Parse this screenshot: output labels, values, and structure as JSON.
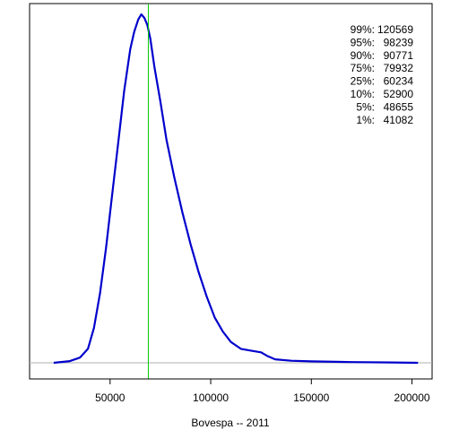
{
  "chart_data": {
    "type": "line",
    "title": "",
    "xlabel": "Bovespa -- 2011",
    "ylabel": "",
    "xlim": [
      10000,
      210000
    ],
    "ylim": [
      0,
      1
    ],
    "x_ticks": [
      50000,
      100000,
      150000,
      200000
    ],
    "x_tick_labels": [
      "50000",
      "100000",
      "150000",
      "200000"
    ],
    "grid": false,
    "y_axis_shown": false,
    "baseline_value": 0,
    "reference_line": {
      "x": 69000,
      "color": "#00cc00"
    },
    "series": [
      {
        "color": "#0000cc",
        "x": [
          22000,
          30000,
          35000,
          39000,
          42000,
          45000,
          48000,
          51000,
          54000,
          57000,
          60000,
          62000,
          64000,
          65500,
          67000,
          68500,
          70000,
          72000,
          75000,
          78000,
          82000,
          86000,
          90000,
          94000,
          98000,
          102000,
          106000,
          110000,
          115000,
          120000,
          125000,
          128000,
          132000,
          140000,
          150000,
          170000,
          190000,
          203000
        ],
        "y": [
          0.0,
          0.005,
          0.015,
          0.04,
          0.1,
          0.2,
          0.33,
          0.48,
          0.63,
          0.78,
          0.9,
          0.95,
          0.985,
          1.0,
          0.99,
          0.97,
          0.93,
          0.85,
          0.75,
          0.64,
          0.53,
          0.43,
          0.34,
          0.26,
          0.19,
          0.13,
          0.09,
          0.06,
          0.04,
          0.035,
          0.03,
          0.02,
          0.01,
          0.006,
          0.004,
          0.002,
          0.001,
          0.0
        ]
      }
    ],
    "quantiles": [
      {
        "label": "99%:",
        "value": "120569"
      },
      {
        "label": "95%:",
        "value": "98239"
      },
      {
        "label": "90%:",
        "value": "90771"
      },
      {
        "label": "75%:",
        "value": "79932"
      },
      {
        "label": "25%:",
        "value": "60234"
      },
      {
        "label": "10%:",
        "value": "52900"
      },
      {
        "label": "5%:",
        "value": "48655"
      },
      {
        "label": "1%:",
        "value": "41082"
      }
    ],
    "colors": {
      "frame": "#000000",
      "baseline": "#b0b0b0"
    }
  }
}
